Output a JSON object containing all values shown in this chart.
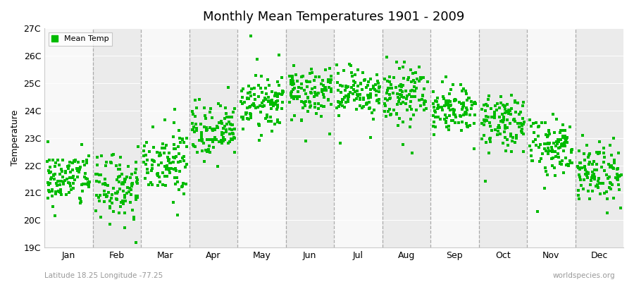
{
  "title": "Monthly Mean Temperatures 1901 - 2009",
  "ylabel": "Temperature",
  "subtitle_left": "Latitude 18.25 Longitude -77.25",
  "subtitle_right": "worldspecies.org",
  "months": [
    "Jan",
    "Feb",
    "Mar",
    "Apr",
    "May",
    "Jun",
    "Jul",
    "Aug",
    "Sep",
    "Oct",
    "Nov",
    "Dec"
  ],
  "month_means": [
    21.5,
    21.2,
    22.1,
    23.2,
    24.2,
    24.7,
    24.7,
    24.6,
    24.1,
    23.6,
    22.7,
    21.8
  ],
  "month_stds": [
    0.5,
    0.58,
    0.52,
    0.48,
    0.44,
    0.46,
    0.48,
    0.5,
    0.43,
    0.46,
    0.52,
    0.54
  ],
  "ylim_min": 19,
  "ylim_max": 27,
  "yticks": [
    19,
    20,
    21,
    22,
    23,
    24,
    25,
    26,
    27
  ],
  "ytick_labels": [
    "19C",
    "20C",
    "21C",
    "22C",
    "23C",
    "24C",
    "25C",
    "26C",
    "27C"
  ],
  "n_years": 109,
  "dot_color": "#00bb00",
  "dot_size": 5,
  "bg_color_light": "#f8f8f8",
  "bg_color_dark": "#ebebeb",
  "legend_color": "#00bb00",
  "legend_label": "Mean Temp",
  "dashed_line_color": "#999999",
  "seed": 42
}
